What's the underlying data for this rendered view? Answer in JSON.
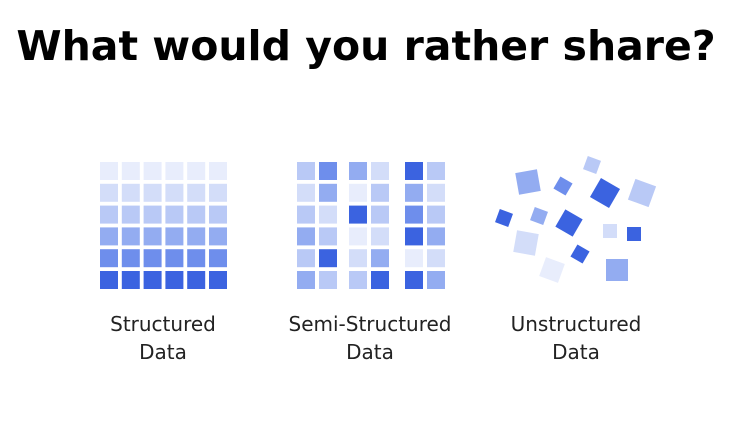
{
  "title": "What would you rather share?",
  "items": [
    {
      "label_lines": [
        "Structured",
        "Data"
      ]
    },
    {
      "label_lines": [
        "Semi-Structured",
        "Data"
      ]
    },
    {
      "label_lines": [
        "Unstructured",
        "Data"
      ]
    }
  ]
}
